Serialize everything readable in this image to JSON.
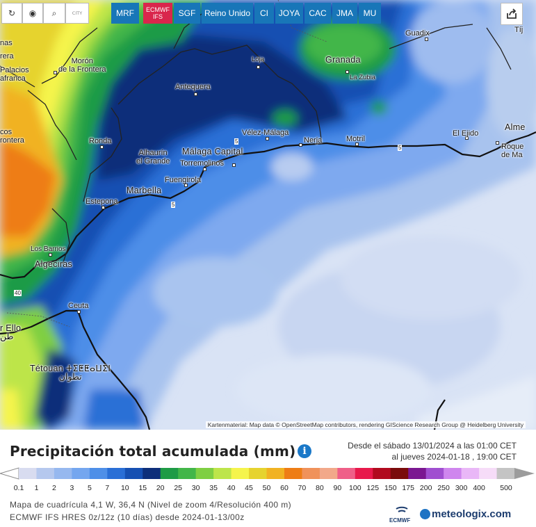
{
  "toolbar": {
    "buttons": [
      {
        "name": "refresh-icon",
        "glyph": "↻"
      },
      {
        "name": "location-pin-icon",
        "glyph": "◉"
      },
      {
        "name": "zoom-icon",
        "glyph": "⌕"
      },
      {
        "name": "city-toggle-icon",
        "label": "CITY"
      }
    ],
    "models": [
      {
        "id": "mrf",
        "label": "MRF"
      },
      {
        "id": "ecmwf",
        "label": "ECMWF IFS",
        "line1": "ECMWF",
        "line2": "IFS",
        "active": true
      },
      {
        "id": "sgf",
        "label": "SGF"
      },
      {
        "id": "uk",
        "label": "Reino Unido"
      },
      {
        "id": "ci",
        "label": "CI"
      },
      {
        "id": "joya",
        "label": "JOYA"
      },
      {
        "id": "cac",
        "label": "CAC"
      },
      {
        "id": "jma",
        "label": "JMA"
      },
      {
        "id": "mu",
        "label": "MU"
      }
    ]
  },
  "map": {
    "cities": [
      {
        "id": "guadix",
        "label": "Guadix"
      },
      {
        "id": "tijola",
        "label": "Tíj"
      },
      {
        "id": "moron",
        "label": "Morón\nde la Frontera"
      },
      {
        "id": "palacios",
        "label": "Palacios\nafranca"
      },
      {
        "id": "utrera",
        "label": "rera"
      },
      {
        "id": "nas",
        "label": "nas"
      },
      {
        "id": "loja",
        "label": "Loja"
      },
      {
        "id": "granada",
        "label": "Granada"
      },
      {
        "id": "lazubia",
        "label": "La Zubia"
      },
      {
        "id": "antequera",
        "label": "Antequera"
      },
      {
        "id": "arcos",
        "label": "cos\nrontera"
      },
      {
        "id": "velez",
        "label": "Vélez-Málaga"
      },
      {
        "id": "elejido",
        "label": "El Ejido"
      },
      {
        "id": "almeria",
        "label": "Alme"
      },
      {
        "id": "roquetas",
        "label": "Roque\nde Ma"
      },
      {
        "id": "ronda",
        "label": "Ronda"
      },
      {
        "id": "alhaurin",
        "label": "Alhaurín\nel Grande"
      },
      {
        "id": "malaga",
        "label": "Málaga Capital"
      },
      {
        "id": "nerja",
        "label": "Nerja"
      },
      {
        "id": "motril",
        "label": "Motril"
      },
      {
        "id": "torremolinos",
        "label": "Torremolinos"
      },
      {
        "id": "fuengirola",
        "label": "Fuengirola"
      },
      {
        "id": "marbella",
        "label": "Marbella"
      },
      {
        "id": "estepona",
        "label": "Estepona"
      },
      {
        "id": "losbarrios",
        "label": "Los Barrios"
      },
      {
        "id": "algeciras",
        "label": "Algeciras"
      },
      {
        "id": "ceuta",
        "label": "Ceuta"
      },
      {
        "id": "ksar",
        "label": "r Ello\nطن"
      },
      {
        "id": "tetouan",
        "label": "Tétouan ⵜⵉⵟⵟⴰⵡⵉⵏ\nتطوان"
      }
    ],
    "road_numbers": [
      "5",
      "5",
      "40",
      "5"
    ],
    "attribution": "Kartenmaterial: Map data © OpenStreetMap contributors, rendering GIScience Research Group @ Heidelberg University"
  },
  "legend": {
    "title": "Precipitación total acumulada (mm)",
    "info_icon": "info-icon",
    "date_from": "Desde el sábado 13/01/2024 a  las 01:00 CET",
    "date_to": "al jueves 2024-01-18 , 19:00 CET",
    "scale": [
      {
        "v": "0.1",
        "c": "#d8dcf0"
      },
      {
        "v": "1",
        "c": "#b5c8ee"
      },
      {
        "v": "2",
        "c": "#96b8ef"
      },
      {
        "v": "3",
        "c": "#74a6ef"
      },
      {
        "v": "5",
        "c": "#4e8fe8"
      },
      {
        "v": "7",
        "c": "#2a6fd6"
      },
      {
        "v": "10",
        "c": "#1650b2"
      },
      {
        "v": "15",
        "c": "#0d2f7a"
      },
      {
        "v": "20",
        "c": "#1e9b46"
      },
      {
        "v": "25",
        "c": "#42b649"
      },
      {
        "v": "30",
        "c": "#7fcf43"
      },
      {
        "v": "35",
        "c": "#bde54a"
      },
      {
        "v": "40",
        "c": "#f5f44c"
      },
      {
        "v": "45",
        "c": "#e6d32e"
      },
      {
        "v": "50",
        "c": "#f1b222"
      },
      {
        "v": "60",
        "c": "#ee7d15"
      },
      {
        "v": "70",
        "c": "#f0925a"
      },
      {
        "v": "80",
        "c": "#f2a88a"
      },
      {
        "v": "90",
        "c": "#ef5f88"
      },
      {
        "v": "100",
        "c": "#e8194b"
      },
      {
        "v": "125",
        "c": "#b10a1e"
      },
      {
        "v": "150",
        "c": "#7a0b0b"
      },
      {
        "v": "175",
        "c": "#7b1791"
      },
      {
        "v": "200",
        "c": "#a04fd0"
      },
      {
        "v": "250",
        "c": "#cf86ee"
      },
      {
        "v": "300",
        "c": "#e9b7f7"
      },
      {
        "v": "400",
        "c": "#f6dcf8"
      },
      {
        "v": "500",
        "c": "#c4c4c4"
      }
    ],
    "grid_info": "Mapa de cuadrícula 4,1 W, 36,4 N (Nivel de zoom 4/Resolución 400 m)",
    "run_info": "ECMWF IFS HRES 0z/12z (10 días) desde 2024-01-13/00z",
    "ecmwf_logo_text": "ECMWF",
    "brand": "meteologix.com"
  }
}
